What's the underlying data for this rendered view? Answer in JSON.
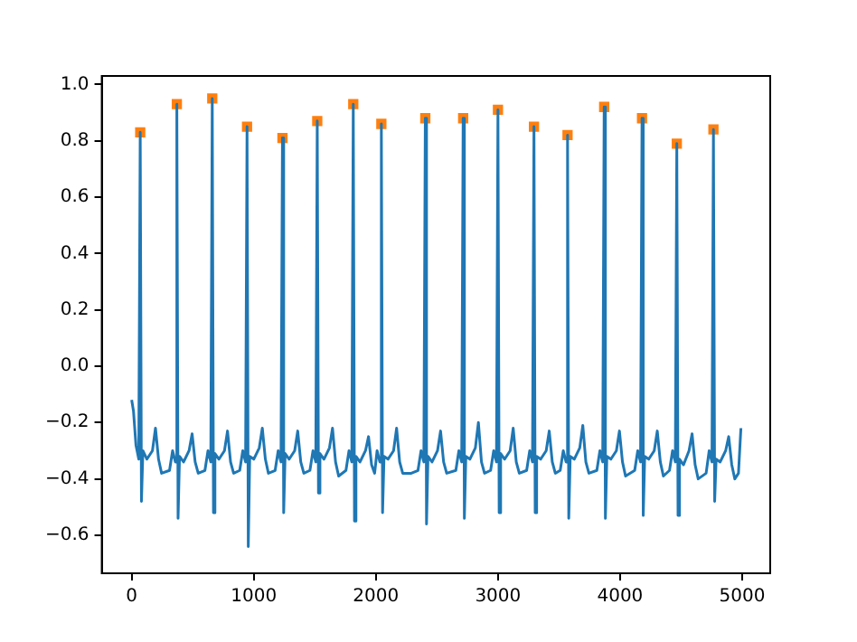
{
  "chart_data": {
    "type": "line",
    "xlim": [
      -245,
      5230
    ],
    "xticks": [
      0,
      1000,
      2000,
      3000,
      4000,
      5000
    ],
    "ylim": [
      -0.735,
      1.03
    ],
    "yticks": [
      {
        "value": -0.6,
        "label": "−0.6"
      },
      {
        "value": -0.4,
        "label": "−0.4"
      },
      {
        "value": -0.2,
        "label": "−0.2"
      },
      {
        "value": 0,
        "label": "0.0"
      },
      {
        "value": 0.2,
        "label": "0.2"
      },
      {
        "value": 0.4,
        "label": "0.4"
      },
      {
        "value": 0.6,
        "label": "0.6"
      },
      {
        "value": 0.8,
        "label": "0.8"
      },
      {
        "value": 1,
        "label": "1.0"
      }
    ],
    "grid": false,
    "legend": false,
    "series": [
      {
        "color": "#1f77b4",
        "x": [
          0,
          15,
          35,
          58,
          70,
          80,
          92,
          125,
          170,
          195,
          220,
          245,
          310,
          335,
          358,
          370,
          380,
          392,
          425,
          470,
          495,
          520,
          545,
          600,
          625,
          648,
          660,
          670,
          682,
          715,
          760,
          785,
          810,
          835,
          885,
          910,
          933,
          945,
          955,
          967,
          1000,
          1045,
          1070,
          1095,
          1120,
          1175,
          1200,
          1223,
          1235,
          1245,
          1257,
          1290,
          1335,
          1360,
          1385,
          1410,
          1460,
          1485,
          1508,
          1520,
          1530,
          1542,
          1575,
          1620,
          1645,
          1670,
          1695,
          1755,
          1780,
          1803,
          1815,
          1825,
          1837,
          1870,
          1915,
          1940,
          1965,
          1990,
          2010,
          2033,
          2045,
          2055,
          2067,
          2100,
          2145,
          2170,
          2195,
          2220,
          2290,
          2345,
          2370,
          2393,
          2405,
          2415,
          2427,
          2460,
          2505,
          2530,
          2555,
          2580,
          2655,
          2680,
          2703,
          2715,
          2725,
          2737,
          2770,
          2815,
          2840,
          2865,
          2890,
          2940,
          2965,
          2988,
          3000,
          3010,
          3022,
          3055,
          3100,
          3125,
          3150,
          3175,
          3235,
          3260,
          3283,
          3295,
          3305,
          3317,
          3350,
          3395,
          3420,
          3445,
          3470,
          3510,
          3535,
          3558,
          3570,
          3580,
          3592,
          3625,
          3670,
          3695,
          3720,
          3745,
          3810,
          3835,
          3858,
          3870,
          3880,
          3892,
          3925,
          3970,
          3995,
          4020,
          4045,
          4120,
          4145,
          4168,
          4180,
          4190,
          4202,
          4235,
          4280,
          4305,
          4330,
          4355,
          4405,
          4430,
          4453,
          4465,
          4475,
          4487,
          4520,
          4565,
          4590,
          4615,
          4640,
          4705,
          4730,
          4753,
          4765,
          4775,
          4787,
          4820,
          4865,
          4890,
          4915,
          4940,
          4970,
          4990
        ],
        "values": [
          -0.12,
          -0.16,
          -0.28,
          -0.33,
          0.83,
          -0.48,
          -0.3,
          -0.33,
          -0.3,
          -0.22,
          -0.33,
          -0.38,
          -0.37,
          -0.3,
          -0.34,
          0.93,
          -0.54,
          -0.32,
          -0.34,
          -0.3,
          -0.24,
          -0.34,
          -0.38,
          -0.37,
          -0.3,
          -0.34,
          0.95,
          -0.52,
          -0.31,
          -0.33,
          -0.3,
          -0.23,
          -0.34,
          -0.38,
          -0.37,
          -0.3,
          -0.34,
          0.85,
          -0.64,
          -0.32,
          -0.33,
          -0.29,
          -0.22,
          -0.33,
          -0.38,
          -0.37,
          -0.3,
          -0.34,
          0.81,
          -0.52,
          -0.31,
          -0.33,
          -0.3,
          -0.23,
          -0.34,
          -0.38,
          -0.37,
          -0.3,
          -0.34,
          0.87,
          -0.45,
          -0.31,
          -0.33,
          -0.29,
          -0.22,
          -0.34,
          -0.39,
          -0.37,
          -0.3,
          -0.34,
          0.93,
          -0.55,
          -0.32,
          -0.34,
          -0.3,
          -0.25,
          -0.35,
          -0.38,
          -0.3,
          -0.34,
          0.86,
          -0.52,
          -0.32,
          -0.33,
          -0.3,
          -0.22,
          -0.34,
          -0.38,
          -0.38,
          -0.37,
          -0.3,
          -0.34,
          0.88,
          -0.56,
          -0.32,
          -0.34,
          -0.3,
          -0.23,
          -0.34,
          -0.38,
          -0.37,
          -0.3,
          -0.34,
          0.88,
          -0.54,
          -0.32,
          -0.33,
          -0.29,
          -0.2,
          -0.34,
          -0.38,
          -0.37,
          -0.3,
          -0.34,
          0.91,
          -0.52,
          -0.31,
          -0.33,
          -0.3,
          -0.22,
          -0.34,
          -0.38,
          -0.37,
          -0.3,
          -0.34,
          0.85,
          -0.52,
          -0.32,
          -0.33,
          -0.3,
          -0.23,
          -0.34,
          -0.38,
          -0.37,
          -0.3,
          -0.34,
          0.82,
          -0.54,
          -0.32,
          -0.33,
          -0.29,
          -0.21,
          -0.34,
          -0.38,
          -0.37,
          -0.3,
          -0.34,
          0.92,
          -0.54,
          -0.32,
          -0.33,
          -0.3,
          -0.23,
          -0.34,
          -0.39,
          -0.37,
          -0.3,
          -0.34,
          0.88,
          -0.53,
          -0.32,
          -0.33,
          -0.3,
          -0.23,
          -0.34,
          -0.39,
          -0.37,
          -0.3,
          -0.34,
          0.79,
          -0.53,
          -0.33,
          -0.35,
          -0.3,
          -0.24,
          -0.35,
          -0.4,
          -0.38,
          -0.3,
          -0.34,
          0.84,
          -0.48,
          -0.33,
          -0.34,
          -0.3,
          -0.25,
          -0.35,
          -0.4,
          -0.38,
          -0.22
        ]
      },
      {
        "type": "scatter",
        "color": "#ff7f0e",
        "marker": "square",
        "x": [
          70,
          370,
          660,
          945,
          1235,
          1520,
          1815,
          2045,
          2405,
          2715,
          3000,
          3295,
          3570,
          3870,
          4180,
          4465,
          4765
        ],
        "values": [
          0.83,
          0.93,
          0.95,
          0.85,
          0.81,
          0.87,
          0.93,
          0.86,
          0.88,
          0.88,
          0.91,
          0.85,
          0.82,
          0.92,
          0.88,
          0.79,
          0.84
        ]
      }
    ]
  }
}
